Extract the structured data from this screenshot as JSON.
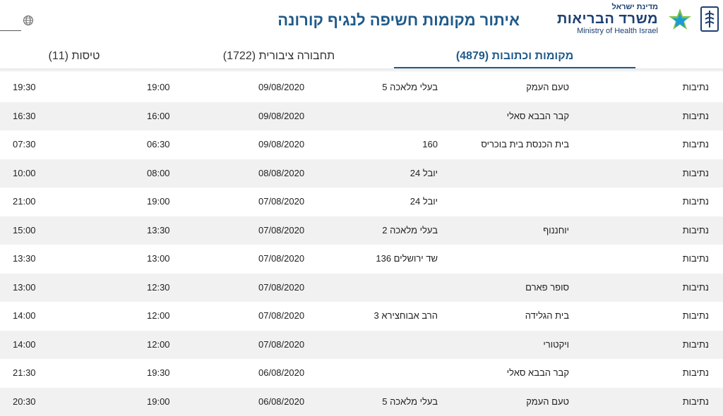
{
  "header": {
    "page_title": "איתור מקומות חשיפה לנגיף קורונה",
    "ministry_small": "מדינת ישראל",
    "ministry_hebrew": "משרד הבריאות",
    "ministry_english": "Ministry of Health Israel",
    "language_icon": "globe-icon",
    "colors": {
      "brand": "#1d3f72",
      "title": "#1f5a8a"
    }
  },
  "tabs": [
    {
      "label": "מקומות וכתובות (4879)",
      "active": true
    },
    {
      "label": "תחבורה ציבורית (1722)",
      "active": false
    },
    {
      "label": "טיסות (11)",
      "active": false
    }
  ],
  "rows": [
    {
      "city": "נתיבות",
      "place": "טעם העמק",
      "address": "בעלי מלאכה 5",
      "date": "09/08/2020",
      "from": "19:00",
      "to": "19:30"
    },
    {
      "city": "נתיבות",
      "place": "קבר הבבא סאלי",
      "address": "",
      "date": "09/08/2020",
      "from": "16:00",
      "to": "16:30"
    },
    {
      "city": "נתיבות",
      "place": "בית הכנסת בית בוכריס",
      "address": "160",
      "date": "09/08/2020",
      "from": "06:30",
      "to": "07:30"
    },
    {
      "city": "נתיבות",
      "place": "",
      "address": "יובל 24",
      "date": "08/08/2020",
      "from": "08:00",
      "to": "10:00"
    },
    {
      "city": "נתיבות",
      "place": "",
      "address": "יובל 24",
      "date": "07/08/2020",
      "from": "19:00",
      "to": "21:00"
    },
    {
      "city": "נתיבות",
      "place": "יוחננוף",
      "address": "בעלי מלאכה 2",
      "date": "07/08/2020",
      "from": "13:30",
      "to": "15:00"
    },
    {
      "city": "נתיבות",
      "place": "",
      "address": "שד ירושלים 136",
      "date": "07/08/2020",
      "from": "13:00",
      "to": "13:30"
    },
    {
      "city": "נתיבות",
      "place": "סופר פארם",
      "address": "",
      "date": "07/08/2020",
      "from": "12:30",
      "to": "13:00"
    },
    {
      "city": "נתיבות",
      "place": "בית הגלידה",
      "address": "הרב אבוחצירא 3",
      "date": "07/08/2020",
      "from": "12:00",
      "to": "14:00"
    },
    {
      "city": "נתיבות",
      "place": "ויקטורי",
      "address": "",
      "date": "07/08/2020",
      "from": "12:00",
      "to": "14:00"
    },
    {
      "city": "נתיבות",
      "place": "קבר הבבא סאלי",
      "address": "",
      "date": "06/08/2020",
      "from": "19:30",
      "to": "21:30"
    },
    {
      "city": "נתיבות",
      "place": "טעם העמק",
      "address": "בעלי מלאכה 5",
      "date": "06/08/2020",
      "from": "19:00",
      "to": "20:30"
    }
  ]
}
